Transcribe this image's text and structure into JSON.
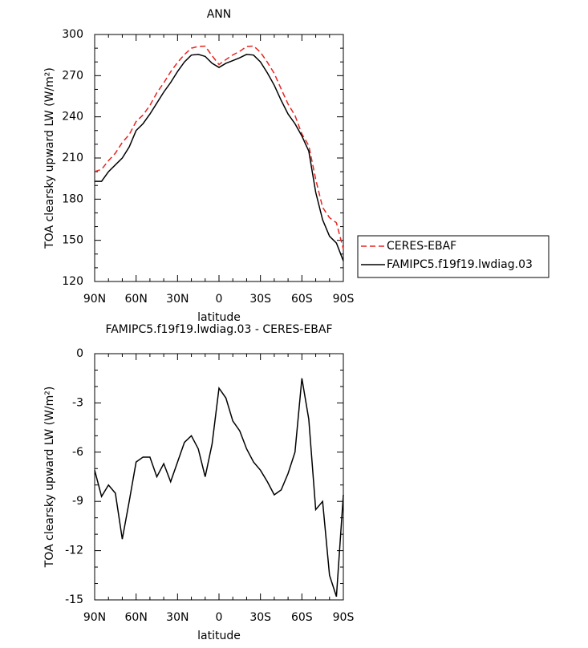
{
  "chart_data": [
    {
      "type": "line",
      "title": "ANN",
      "xlabel": "latitude",
      "ylabel": "TOA clearsky upward LW (W/m²)",
      "x": [
        90,
        85,
        80,
        75,
        70,
        65,
        60,
        55,
        50,
        45,
        40,
        35,
        30,
        25,
        20,
        15,
        10,
        5,
        0,
        -5,
        -10,
        -15,
        -20,
        -25,
        -30,
        -35,
        -40,
        -45,
        -50,
        -55,
        -60,
        -65,
        -70,
        -75,
        -80,
        -85,
        -90
      ],
      "series": [
        {
          "name": "CERES-EBAF",
          "color": "#e8231f",
          "dash": true,
          "values": [
            200.1,
            201.7,
            208,
            213.5,
            221.3,
            227,
            236.6,
            241.3,
            248.3,
            257.5,
            264.7,
            272.8,
            279.6,
            285.4,
            290,
            291.3,
            291.5,
            284.5,
            278.1,
            281.7,
            285.1,
            287.7,
            291.3,
            291.6,
            287.1,
            279.8,
            271.6,
            260.3,
            249.3,
            241,
            227.5,
            219,
            194.5,
            174,
            166.5,
            162.8,
            143.6
          ]
        },
        {
          "name": "FAMIPC5.f19f19.lwdiag.03",
          "color": "#000000",
          "dash": false,
          "values": [
            193,
            193,
            200,
            205,
            210,
            218,
            230,
            235,
            242,
            250,
            258,
            265,
            273,
            280,
            285,
            285.5,
            284,
            279,
            276,
            279,
            281,
            283,
            285.5,
            285,
            280,
            272,
            263,
            252,
            242,
            235,
            226,
            215,
            185,
            165,
            153,
            148,
            135
          ]
        }
      ],
      "xlim": [
        90,
        -90
      ],
      "xticks": [
        {
          "value": 90,
          "label": "90N"
        },
        {
          "value": 60,
          "label": "60N"
        },
        {
          "value": 30,
          "label": "30N"
        },
        0,
        {
          "value": -30,
          "label": "30S"
        },
        {
          "value": -60,
          "label": "60S"
        },
        {
          "value": -90,
          "label": "90S"
        }
      ],
      "ylim": [
        120,
        300
      ],
      "yticks": [
        120,
        150,
        180,
        210,
        240,
        270,
        300
      ],
      "legend": "right"
    },
    {
      "type": "line",
      "title": "FAMIPC5.f19f19.lwdiag.03 - CERES-EBAF",
      "xlabel": "latitude",
      "ylabel": "TOA clearsky upward LW (W/m²)",
      "x": [
        90,
        85,
        80,
        75,
        70,
        65,
        60,
        55,
        50,
        45,
        40,
        35,
        30,
        25,
        20,
        15,
        10,
        5,
        0,
        -5,
        -10,
        -15,
        -20,
        -25,
        -30,
        -35,
        -40,
        -45,
        -50,
        -55,
        -60,
        -65,
        -70,
        -75,
        -80,
        -85,
        -90
      ],
      "values": [
        -7.1,
        -8.7,
        -8,
        -8.5,
        -11.3,
        -9,
        -6.6,
        -6.3,
        -6.3,
        -7.5,
        -6.7,
        -7.8,
        -6.6,
        -5.4,
        -5,
        -5.8,
        -7.5,
        -5.5,
        -2.1,
        -2.7,
        -4.1,
        -4.7,
        -5.8,
        -6.6,
        -7.1,
        -7.8,
        -8.6,
        -8.3,
        -7.3,
        -6,
        -1.5,
        -4,
        -9.5,
        -9,
        -13.5,
        -14.8,
        -8.6
      ],
      "color": "#000000",
      "xlim": [
        90,
        -90
      ],
      "xticks": [
        {
          "value": 90,
          "label": "90N"
        },
        {
          "value": 60,
          "label": "60N"
        },
        {
          "value": 30,
          "label": "30N"
        },
        0,
        {
          "value": -30,
          "label": "30S"
        },
        {
          "value": -60,
          "label": "60S"
        },
        {
          "value": -90,
          "label": "90S"
        }
      ],
      "ylim": [
        -15,
        0
      ],
      "yticks": [
        -15,
        -12,
        -9,
        -6,
        -3,
        0
      ]
    }
  ]
}
